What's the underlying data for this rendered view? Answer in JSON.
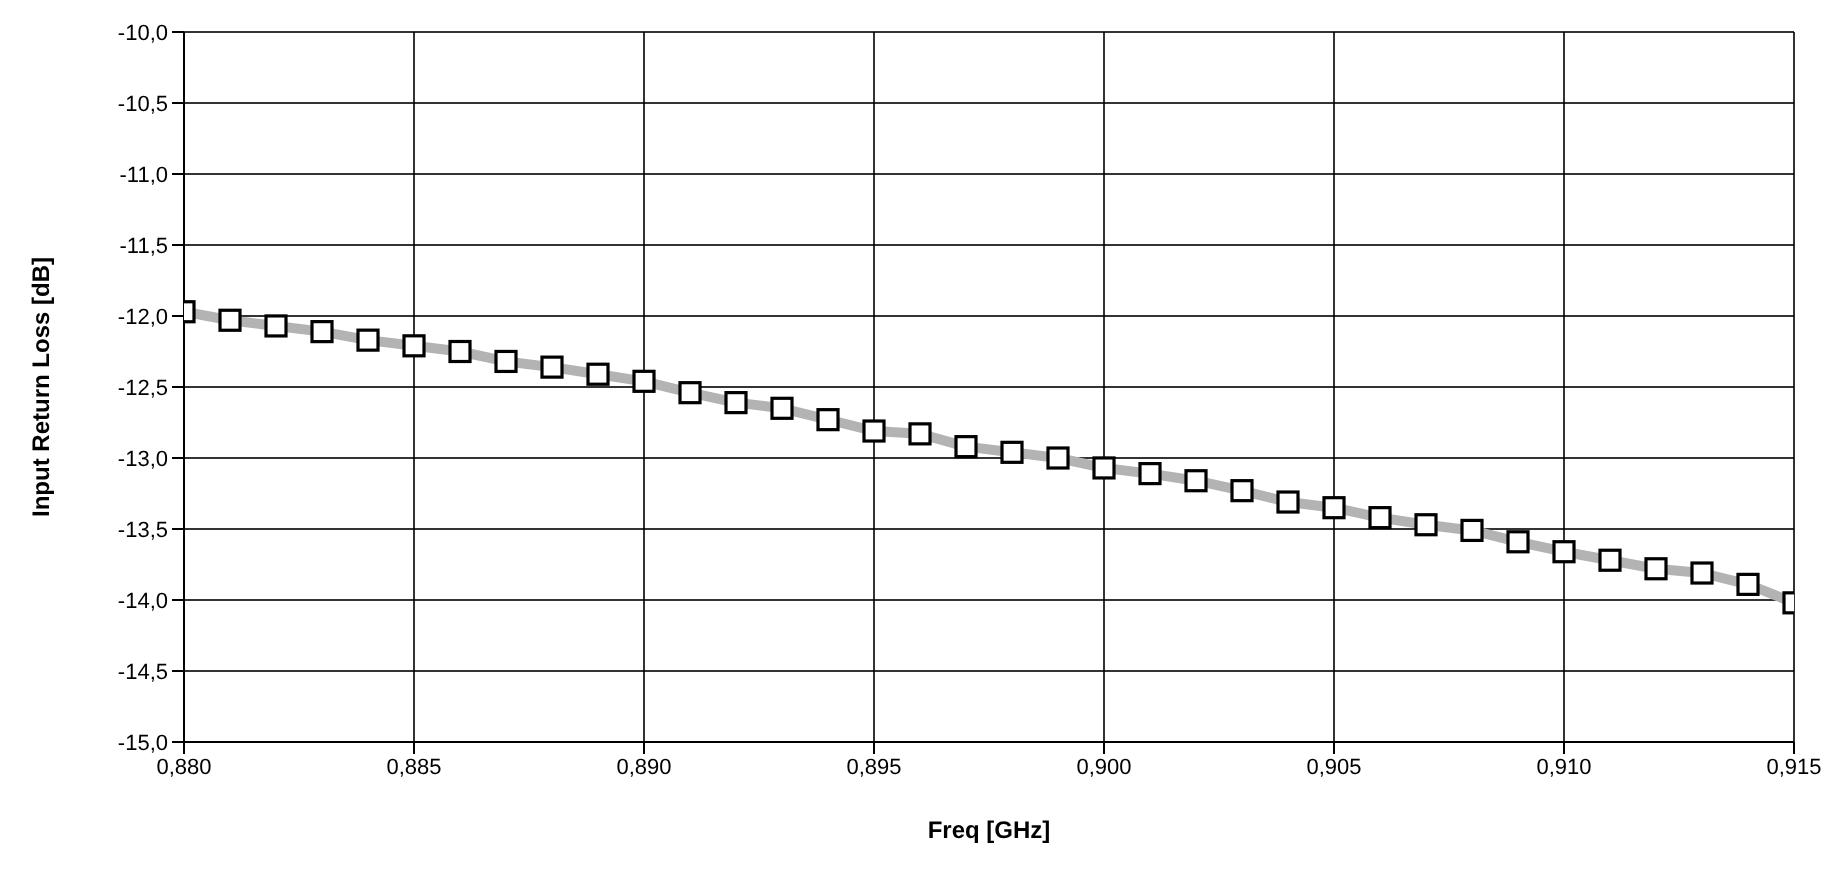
{
  "chart_data": {
    "type": "line",
    "xlabel": "Freq [GHz]",
    "ylabel": "Input Return Loss [dB]",
    "x": [
      0.88,
      0.881,
      0.882,
      0.883,
      0.884,
      0.885,
      0.886,
      0.887,
      0.888,
      0.889,
      0.89,
      0.891,
      0.892,
      0.893,
      0.894,
      0.895,
      0.896,
      0.897,
      0.898,
      0.899,
      0.9,
      0.901,
      0.902,
      0.903,
      0.904,
      0.905,
      0.906,
      0.907,
      0.908,
      0.909,
      0.91,
      0.911,
      0.912,
      0.913,
      0.914,
      0.915
    ],
    "series": [
      {
        "color": "#b3b3b3",
        "values": [
          -11.97,
          -12.03,
          -12.07,
          -12.11,
          -12.17,
          -12.21,
          -12.25,
          -12.32,
          -12.36,
          -12.41,
          -12.46,
          -12.54,
          -12.61,
          -12.65,
          -12.73,
          -12.81,
          -12.83,
          -12.92,
          -12.96,
          -13.0,
          -13.07,
          -13.11,
          -13.16,
          -13.23,
          -13.31,
          -13.35,
          -13.42,
          -13.47,
          -13.51,
          -13.59,
          -13.66,
          -13.72,
          -13.78,
          -13.81,
          -13.89,
          -14.02
        ]
      }
    ],
    "xlim": [
      0.88,
      0.915
    ],
    "xticks": [
      {
        "value": 0.88,
        "label": "0,880"
      },
      {
        "value": 0.885,
        "label": "0,885"
      },
      {
        "value": 0.89,
        "label": "0,890"
      },
      {
        "value": 0.895,
        "label": "0,895"
      },
      {
        "value": 0.9,
        "label": "0,900"
      },
      {
        "value": 0.905,
        "label": "0,905"
      },
      {
        "value": 0.91,
        "label": "0,910"
      },
      {
        "value": 0.915,
        "label": "0,915"
      }
    ],
    "ylim": [
      -15,
      -10
    ],
    "yticks": [
      {
        "value": -10,
        "label": "-10,0"
      },
      {
        "value": -10.5,
        "label": "-10,5"
      },
      {
        "value": -11,
        "label": "-11,0"
      },
      {
        "value": -11.5,
        "label": "-11,5"
      },
      {
        "value": -12,
        "label": "-12,0"
      },
      {
        "value": -12.5,
        "label": "-12,5"
      },
      {
        "value": -13,
        "label": "-13,0"
      },
      {
        "value": -13.5,
        "label": "-13,5"
      },
      {
        "value": -14,
        "label": "-14,0"
      },
      {
        "value": -14.5,
        "label": "-14,5"
      },
      {
        "value": -15,
        "label": "-15,0"
      }
    ],
    "grid": true,
    "marker": "square",
    "line_style": "solid",
    "legend": false
  }
}
